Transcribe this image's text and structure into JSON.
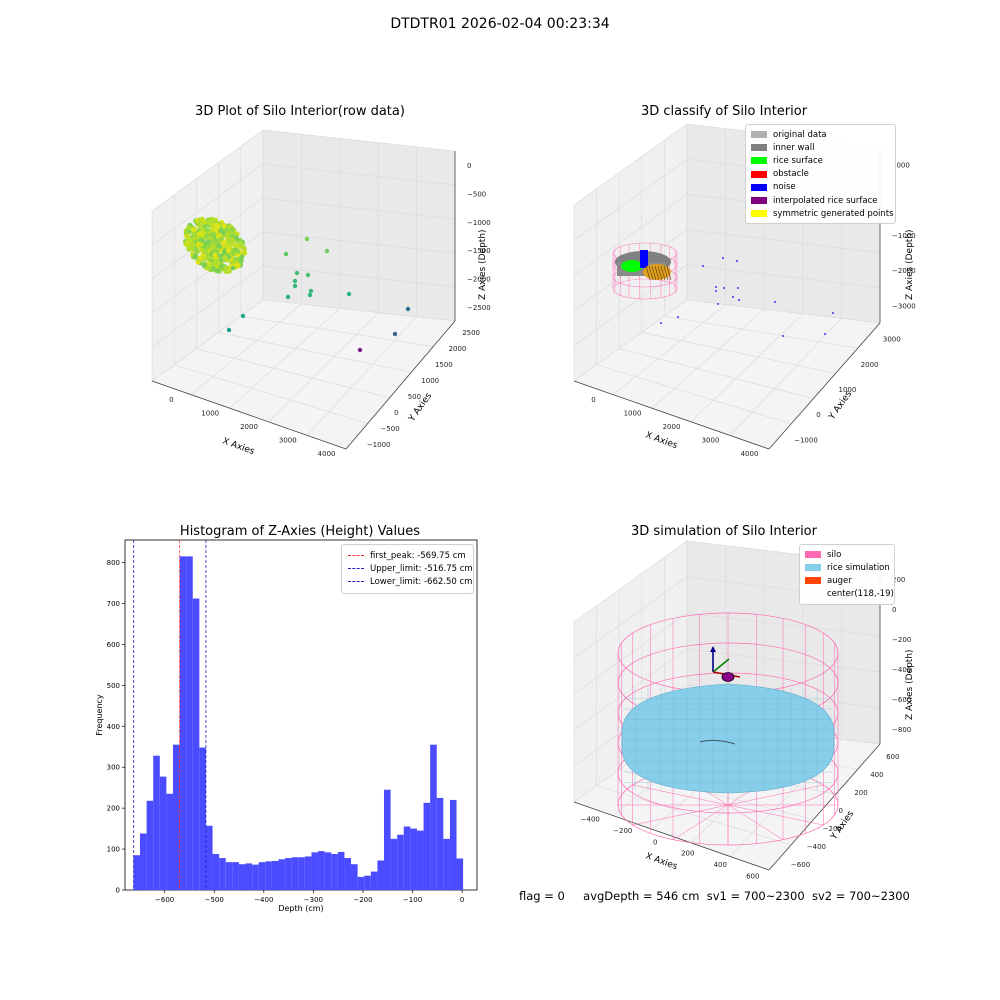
{
  "suptitle": "DTDTR01 2026-02-04 00:23:34",
  "status": {
    "flag": "flag = 0",
    "avg": "avgDepth = 546 cm",
    "sv1": "sv1 = 700~2300",
    "sv2": "sv2 = 700~2300"
  },
  "colors": {
    "bar": "#4b4bff",
    "red_line": "#ff3030",
    "blue_line": "#2020c0",
    "silo": "#ff69b4",
    "rice": "#87ceeb",
    "auger": "#ff4500",
    "pane": "#f2f2f2",
    "grid": "#e0e0e0"
  },
  "chart_data": [
    {
      "type": "scatter",
      "title": "3D Plot of Silo Interior(row data)",
      "xlabel": "X Axies",
      "ylabel": "Y Axies",
      "zlabel": "Z Axies (Depth)",
      "x_ticks": [
        "0",
        "1000",
        "2000",
        "3000",
        "4000"
      ],
      "y_ticks": [
        "−1000",
        "−500",
        "0",
        "500",
        "1000",
        "1500",
        "2000",
        "2500"
      ],
      "z_ticks": [
        "0",
        "−500",
        "−1000",
        "−1500",
        "−2000",
        "−2500"
      ],
      "note": "dense cluster of points near x≈0 plus sparse outliers, colored by depth (viridis)"
    },
    {
      "type": "scatter",
      "title": "3D classify of Silo Interior",
      "xlabel": "X Axies",
      "ylabel": "Y Axies",
      "zlabel": "Z Axies (Depth)",
      "x_ticks": [
        "0",
        "1000",
        "2000",
        "3000",
        "4000"
      ],
      "y_ticks": [
        "−1000",
        "0",
        "1000",
        "2000",
        "3000"
      ],
      "z_ticks": [
        "1000",
        "0",
        "−1000",
        "−2000",
        "−3000"
      ],
      "legend": [
        {
          "label": "original data",
          "color": "#b0b0b0"
        },
        {
          "label": "inner wall",
          "color": "#808080"
        },
        {
          "label": "rice surface",
          "color": "#00ff00"
        },
        {
          "label": "obstacle",
          "color": "#ff0000"
        },
        {
          "label": "noise",
          "color": "#0000ff"
        },
        {
          "label": "interpolated rice surface",
          "color": "#800080"
        },
        {
          "label": "symmetric generated points",
          "color": "#ffff00"
        }
      ]
    },
    {
      "type": "bar",
      "title": "Histogram of Z-Axies (Height) Values",
      "xlabel": "Depth (cm)",
      "ylabel": "Frequency",
      "xlim": [
        -680,
        30
      ],
      "ylim": [
        0,
        855
      ],
      "x_ticks": [
        -600,
        -500,
        -400,
        -300,
        -200,
        -100,
        0
      ],
      "x_tick_labels": [
        "−600",
        "−500",
        "−400",
        "−300",
        "−200",
        "−100",
        "0"
      ],
      "y_ticks": [
        0,
        100,
        200,
        300,
        400,
        500,
        600,
        700,
        800
      ],
      "bin_start": -663,
      "bin_width": 13.3,
      "values": [
        85,
        138,
        218,
        328,
        277,
        235,
        355,
        815,
        815,
        712,
        348,
        157,
        88,
        78,
        68,
        68,
        63,
        65,
        62,
        68,
        70,
        71,
        75,
        78,
        80,
        80,
        82,
        92,
        95,
        92,
        88,
        93,
        78,
        63,
        32,
        35,
        45,
        72,
        245,
        125,
        135,
        155,
        150,
        145,
        213,
        355,
        225,
        125,
        220,
        77
      ],
      "vlines": [
        {
          "label": "first_peak: -569.75 cm",
          "value": -569.75,
          "color": "#ff3030"
        },
        {
          "label": "Upper_limit: -516.75 cm",
          "value": -516.75,
          "color": "#2020c0"
        },
        {
          "label": "Lower_limit: -662.50 cm",
          "value": -662.5,
          "color": "#2020c0"
        }
      ]
    },
    {
      "type": "scatter",
      "title": "3D simulation of Silo Interior",
      "xlabel": "X Axies",
      "ylabel": "Y Axies",
      "zlabel": "Z Axies (Depth)",
      "x_ticks": [
        "−400",
        "−200",
        "0",
        "200",
        "400",
        "600"
      ],
      "y_ticks": [
        "−600",
        "−400",
        "−200",
        "0",
        "200",
        "400",
        "600"
      ],
      "z_ticks": [
        "200",
        "0",
        "−200",
        "−400",
        "−600",
        "−800"
      ],
      "legend": [
        {
          "label": "silo",
          "color": "#ff69b4"
        },
        {
          "label": "rice simulation",
          "color": "#87ceeb"
        },
        {
          "label": "auger",
          "color": "#ff4500"
        },
        {
          "label": "center(118,-19)",
          "color": ""
        }
      ]
    }
  ]
}
